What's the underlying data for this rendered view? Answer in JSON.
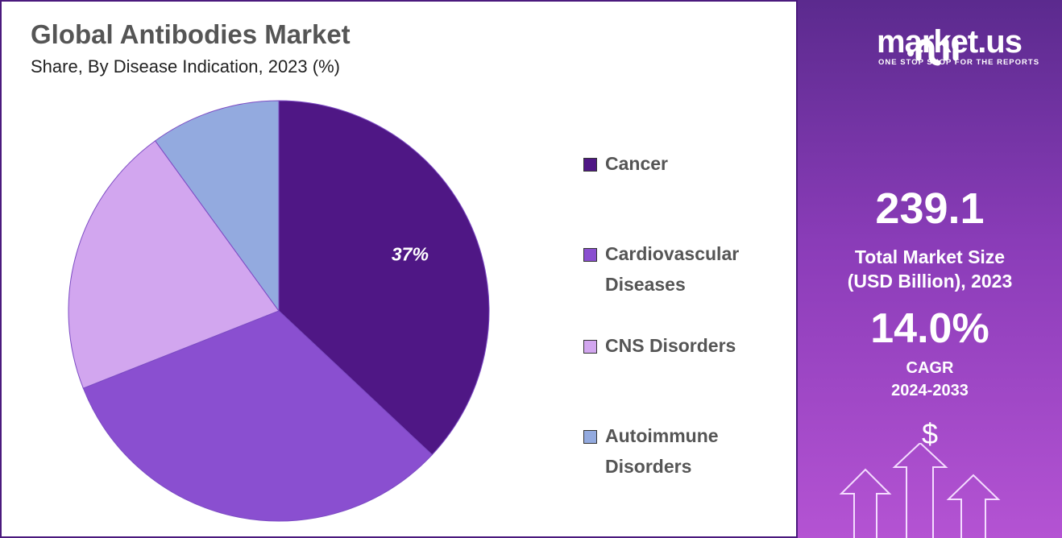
{
  "header": {
    "title": "Global Antibodies Market",
    "subtitle": "Share, By Disease Indication, 2023 (%)"
  },
  "chart_data": {
    "type": "pie",
    "title": "Global Antibodies Market",
    "subtitle": "Share, By Disease Indication, 2023 (%)",
    "categories": [
      "Cancer",
      "Cardiovascular Diseases",
      "CNS Disorders",
      "Autoimmune Disorders"
    ],
    "legend_lines": [
      [
        "Cancer"
      ],
      [
        "Cardiovascular",
        "Diseases"
      ],
      [
        "CNS Disorders"
      ],
      [
        "Autoimmune",
        "Disorders"
      ]
    ],
    "values": [
      37,
      32,
      21,
      10
    ],
    "colors": [
      "#4f1785",
      "#8a4fd0",
      "#d2a6ef",
      "#93aadf"
    ],
    "data_labels": [
      "37%",
      "",
      "",
      ""
    ],
    "legend_position": "right"
  },
  "panel": {
    "brand": "market.us",
    "tagline": "ONE STOP SHOP FOR THE REPORTS",
    "market_size": "239.1",
    "market_size_label_1": "Total Market Size",
    "market_size_label_2": "(USD Billion), 2023",
    "cagr": "14.0%",
    "cagr_label_1": "CAGR",
    "cagr_label_2": "2024-2033",
    "dollar": "$"
  }
}
